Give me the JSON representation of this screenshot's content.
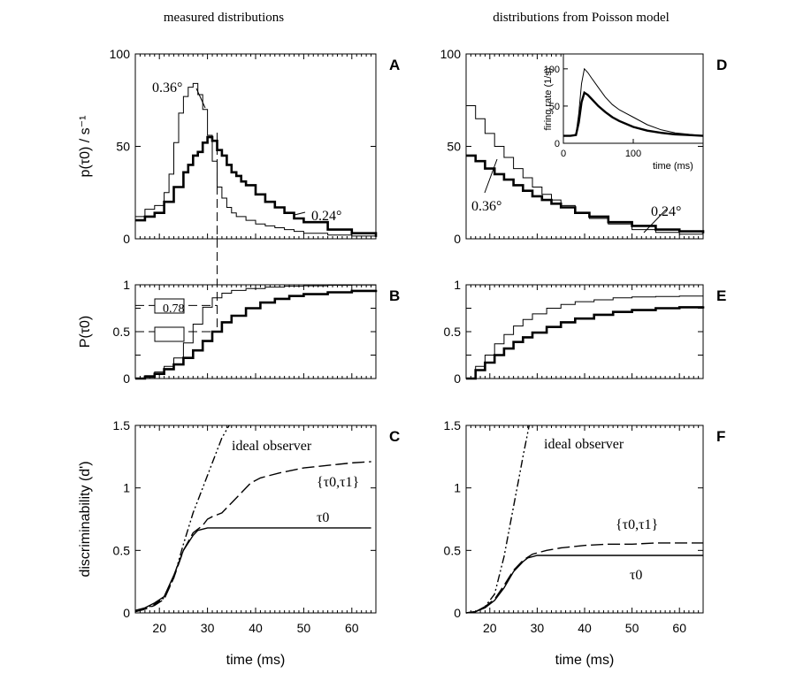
{
  "headers": {
    "left": "measured distributions",
    "right": "distributions from Poisson model"
  },
  "annotation_box_value": "0.78",
  "chart_data": [
    {
      "id": "A",
      "type": "line",
      "label": "A",
      "ylabel": "p(τ0) / s⁻¹",
      "xlim": [
        15,
        65
      ],
      "ylim": [
        0,
        100
      ],
      "yticks": [
        0,
        50,
        100
      ],
      "xticks": [
        20,
        30,
        40,
        50,
        60
      ],
      "annotations": [
        "0.36°",
        "0.24°"
      ],
      "series": [
        {
          "name": "0.36°",
          "style": "thin",
          "x": [
            15,
            17,
            19,
            21,
            22,
            23,
            24,
            25,
            26,
            27,
            28,
            29,
            30,
            31,
            32,
            33,
            34,
            35,
            36,
            38,
            40,
            42,
            44,
            46,
            48,
            50,
            55,
            60,
            65
          ],
          "y": [
            12,
            16,
            18,
            25,
            35,
            52,
            68,
            77,
            82,
            84,
            78,
            70,
            56,
            42,
            28,
            22,
            17,
            14,
            12,
            10,
            8,
            7,
            6,
            5,
            4,
            3,
            2,
            1.5,
            1
          ]
        },
        {
          "name": "0.24°",
          "style": "thick",
          "x": [
            15,
            17,
            19,
            21,
            23,
            25,
            26,
            27,
            28,
            29,
            30,
            31,
            32,
            33,
            34,
            35,
            36,
            37,
            38,
            40,
            42,
            44,
            46,
            48,
            50,
            55,
            60,
            65
          ],
          "y": [
            10,
            12,
            14,
            20,
            28,
            36,
            40,
            45,
            47,
            52,
            55,
            53,
            48,
            45,
            40,
            36,
            34,
            31,
            29,
            24,
            20,
            17,
            14,
            11,
            9,
            5,
            3,
            1
          ]
        }
      ]
    },
    {
      "id": "B",
      "type": "line",
      "label": "B",
      "ylabel": "P(τ0)",
      "xlim": [
        15,
        65
      ],
      "ylim": [
        0,
        1
      ],
      "yticks": [
        0.0,
        0.25,
        0.5,
        0.75,
        1.0
      ],
      "xticks": [
        20,
        30,
        40,
        50,
        60
      ],
      "marker_lines": {
        "y_values": [
          0.78,
          0.5
        ],
        "x_value": 32
      },
      "series": [
        {
          "name": "0.36°",
          "style": "thin",
          "x": [
            15,
            17,
            19,
            21,
            23,
            25,
            27,
            29,
            31,
            33,
            35,
            38,
            42,
            46,
            50,
            55,
            60,
            65
          ],
          "y": [
            0.0,
            0.03,
            0.07,
            0.13,
            0.22,
            0.38,
            0.58,
            0.76,
            0.86,
            0.91,
            0.94,
            0.96,
            0.975,
            0.985,
            0.99,
            0.995,
            0.998,
            1.0
          ]
        },
        {
          "name": "0.24°",
          "style": "thick",
          "x": [
            15,
            17,
            19,
            21,
            23,
            25,
            27,
            29,
            31,
            33,
            35,
            38,
            41,
            44,
            47,
            50,
            55,
            60,
            65
          ],
          "y": [
            0.0,
            0.02,
            0.05,
            0.1,
            0.15,
            0.22,
            0.3,
            0.4,
            0.5,
            0.6,
            0.67,
            0.75,
            0.81,
            0.85,
            0.88,
            0.9,
            0.92,
            0.935,
            0.945
          ]
        }
      ]
    },
    {
      "id": "C",
      "type": "line",
      "label": "C",
      "ylabel": "discriminability (d')",
      "xlabel": "time  (ms)",
      "xlim": [
        15,
        65
      ],
      "ylim": [
        0,
        1.5
      ],
      "yticks": [
        0.0,
        0.5,
        1.0,
        1.5
      ],
      "xticks": [
        20,
        30,
        40,
        50,
        60
      ],
      "annotations": [
        "ideal observer",
        "{τ0,τ1}",
        "τ0"
      ],
      "series": [
        {
          "name": "ideal observer",
          "style": "dashdot",
          "x": [
            15,
            17,
            19,
            21,
            23,
            25,
            27,
            29,
            31,
            33,
            34.5
          ],
          "y": [
            0.01,
            0.03,
            0.07,
            0.12,
            0.28,
            0.55,
            0.8,
            1.0,
            1.2,
            1.4,
            1.5
          ]
        },
        {
          "name": "{τ0,τ1}",
          "style": "dashed",
          "x": [
            15,
            17,
            19,
            21,
            23,
            25,
            27,
            29,
            30,
            31,
            33,
            35,
            37,
            39,
            41,
            43,
            45,
            50,
            55,
            60,
            64
          ],
          "y": [
            0.01,
            0.03,
            0.06,
            0.11,
            0.28,
            0.5,
            0.64,
            0.7,
            0.75,
            0.77,
            0.8,
            0.88,
            0.96,
            1.04,
            1.08,
            1.1,
            1.12,
            1.16,
            1.18,
            1.2,
            1.21
          ]
        },
        {
          "name": "τ0",
          "style": "solid",
          "x": [
            15,
            17,
            19,
            21,
            23,
            25,
            27,
            28,
            29,
            30,
            35,
            40,
            50,
            60,
            64
          ],
          "y": [
            0.02,
            0.04,
            0.08,
            0.13,
            0.3,
            0.5,
            0.62,
            0.66,
            0.67,
            0.68,
            0.68,
            0.68,
            0.68,
            0.68,
            0.68
          ]
        }
      ]
    },
    {
      "id": "D",
      "type": "line",
      "label": "D",
      "xlim": [
        15,
        65
      ],
      "ylim": [
        0,
        100
      ],
      "yticks": [
        0,
        50,
        100
      ],
      "annotations": [
        "0.36°",
        "0.24°"
      ],
      "series": [
        {
          "name": "0.36°",
          "style": "thin",
          "x": [
            15,
            17,
            19,
            21,
            23,
            25,
            27,
            29,
            31,
            33,
            35,
            38,
            41,
            45,
            50,
            55,
            60,
            65
          ],
          "y": [
            72,
            65,
            57,
            50,
            44,
            38,
            33,
            28,
            24,
            21,
            18,
            14,
            11,
            8,
            5,
            3.5,
            2.5,
            2
          ]
        },
        {
          "name": "0.24°",
          "style": "thick",
          "x": [
            15,
            17,
            19,
            21,
            23,
            25,
            27,
            29,
            31,
            33,
            35,
            38,
            41,
            45,
            50,
            55,
            60,
            65
          ],
          "y": [
            45,
            42,
            38,
            35,
            32,
            29,
            26,
            23,
            21,
            19,
            17,
            14,
            12,
            9,
            7,
            5,
            4,
            3
          ]
        }
      ],
      "inset": {
        "ylabel": "firing rate (1/s)",
        "xlabel": "time (ms)",
        "xlim": [
          0,
          200
        ],
        "ylim": [
          0,
          120
        ],
        "xticks": [
          0,
          100
        ],
        "yticks": [
          0,
          50,
          100
        ],
        "series": [
          {
            "name": "0.36°",
            "style": "thin",
            "x": [
              0,
              10,
              18,
              22,
              26,
              30,
              35,
              40,
              50,
              60,
              70,
              80,
              100,
              120,
              140,
              160,
              180,
              200
            ],
            "y": [
              10,
              10,
              12,
              40,
              80,
              100,
              95,
              88,
              75,
              62,
              52,
              45,
              35,
              25,
              18,
              14,
              12,
              10
            ]
          },
          {
            "name": "0.24°",
            "style": "thick",
            "x": [
              0,
              10,
              18,
              22,
              26,
              30,
              35,
              40,
              50,
              60,
              70,
              80,
              100,
              120,
              140,
              160,
              180,
              200
            ],
            "y": [
              10,
              10,
              11,
              28,
              55,
              68,
              65,
              60,
              50,
              42,
              35,
              30,
              22,
              17,
              14,
              12,
              11,
              10
            ]
          }
        ]
      }
    },
    {
      "id": "E",
      "type": "line",
      "label": "E",
      "xlim": [
        15,
        65
      ],
      "ylim": [
        0,
        1
      ],
      "yticks": [
        0.0,
        0.25,
        0.5,
        0.75,
        1.0
      ],
      "series": [
        {
          "name": "0.36°",
          "style": "thin",
          "x": [
            15,
            17,
            19,
            21,
            23,
            25,
            27,
            29,
            32,
            35,
            38,
            42,
            46,
            50,
            55,
            60,
            65
          ],
          "y": [
            0.0,
            0.13,
            0.25,
            0.37,
            0.47,
            0.56,
            0.63,
            0.69,
            0.75,
            0.79,
            0.82,
            0.84,
            0.86,
            0.87,
            0.875,
            0.88,
            0.885
          ]
        },
        {
          "name": "0.24°",
          "style": "thick",
          "x": [
            15,
            17,
            19,
            21,
            23,
            25,
            27,
            29,
            32,
            35,
            38,
            42,
            46,
            50,
            55,
            60,
            65
          ],
          "y": [
            0.0,
            0.09,
            0.17,
            0.25,
            0.32,
            0.39,
            0.44,
            0.49,
            0.55,
            0.6,
            0.64,
            0.68,
            0.71,
            0.73,
            0.75,
            0.76,
            0.77
          ]
        }
      ]
    },
    {
      "id": "F",
      "type": "line",
      "label": "F",
      "xlabel": "time  (ms)",
      "xlim": [
        15,
        65
      ],
      "ylim": [
        0,
        1.5
      ],
      "yticks": [
        0.0,
        0.5,
        1.0,
        1.5
      ],
      "xticks": [
        20,
        30,
        40,
        50,
        60
      ],
      "annotations": [
        "ideal observer",
        "{τ0,τ1}",
        "τ0"
      ],
      "series": [
        {
          "name": "ideal observer",
          "style": "dashdot",
          "x": [
            17,
            19,
            21,
            23,
            25,
            26,
            27,
            28.3
          ],
          "y": [
            0.01,
            0.05,
            0.15,
            0.45,
            0.85,
            1.05,
            1.25,
            1.5
          ]
        },
        {
          "name": "{τ0,τ1}",
          "style": "dashed",
          "x": [
            15,
            17,
            19,
            21,
            23,
            25,
            27,
            29,
            32,
            35,
            40,
            45,
            50,
            55,
            60,
            65
          ],
          "y": [
            0.0,
            0.01,
            0.05,
            0.11,
            0.22,
            0.34,
            0.42,
            0.47,
            0.5,
            0.52,
            0.54,
            0.55,
            0.55,
            0.56,
            0.56,
            0.56
          ]
        },
        {
          "name": "τ0",
          "style": "solid",
          "x": [
            15,
            17,
            19,
            21,
            23,
            25,
            27,
            28,
            29,
            30,
            35,
            40,
            50,
            60,
            65
          ],
          "y": [
            0.0,
            0.01,
            0.04,
            0.1,
            0.2,
            0.33,
            0.41,
            0.44,
            0.45,
            0.46,
            0.46,
            0.46,
            0.46,
            0.46,
            0.46
          ]
        }
      ]
    }
  ]
}
